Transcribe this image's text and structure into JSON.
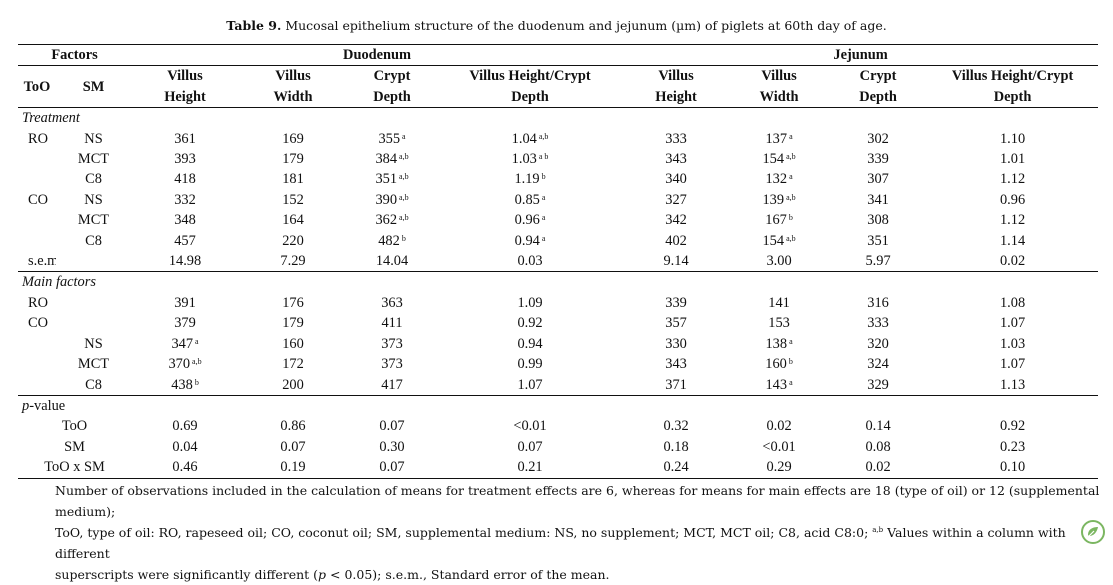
{
  "caption": {
    "label": "Table 9.",
    "text": " Mucosal epithelium structure of the duodenum and jejunum (µm) of piglets at 60th day of age."
  },
  "header": {
    "factors": "Factors",
    "duodenum": "Duodenum",
    "jejunum": "Jejunum",
    "too": "ToO",
    "sm": "SM",
    "columns": [
      [
        "Villus",
        "Height"
      ],
      [
        "Villus",
        "Width"
      ],
      [
        "Crypt",
        "Depth"
      ],
      [
        "Villus Height/Crypt",
        "Depth"
      ],
      [
        "Villus",
        "Height"
      ],
      [
        "Villus",
        "Width"
      ],
      [
        "Crypt",
        "Depth"
      ],
      [
        "Villus Height/Crypt",
        "Depth"
      ]
    ]
  },
  "sections": {
    "treatment": "Treatment",
    "main_factors": "Main factors",
    "pvalue_italic": "p",
    "pvalue_rest": "-value"
  },
  "treatment_rows": [
    {
      "too": "RO",
      "sm": "NS",
      "cells": [
        [
          "361",
          ""
        ],
        [
          "169",
          ""
        ],
        [
          "355",
          "a"
        ],
        [
          "1.04",
          "a,b"
        ],
        [
          "333",
          ""
        ],
        [
          "137",
          "a"
        ],
        [
          "302",
          ""
        ],
        [
          "1.10",
          ""
        ]
      ]
    },
    {
      "too": "",
      "sm": "MCT",
      "cells": [
        [
          "393",
          ""
        ],
        [
          "179",
          ""
        ],
        [
          "384",
          "a,b"
        ],
        [
          "1.03",
          "a b"
        ],
        [
          "343",
          ""
        ],
        [
          "154",
          "a,b"
        ],
        [
          "339",
          ""
        ],
        [
          "1.01",
          ""
        ]
      ]
    },
    {
      "too": "",
      "sm": "C8",
      "cells": [
        [
          "418",
          ""
        ],
        [
          "181",
          ""
        ],
        [
          "351",
          "a,b"
        ],
        [
          "1.19",
          "b"
        ],
        [
          "340",
          ""
        ],
        [
          "132",
          "a"
        ],
        [
          "307",
          ""
        ],
        [
          "1.12",
          ""
        ]
      ]
    },
    {
      "too": "CO",
      "sm": "NS",
      "cells": [
        [
          "332",
          ""
        ],
        [
          "152",
          ""
        ],
        [
          "390",
          "a,b"
        ],
        [
          "0.85",
          "a"
        ],
        [
          "327",
          ""
        ],
        [
          "139",
          "a,b"
        ],
        [
          "341",
          ""
        ],
        [
          "0.96",
          ""
        ]
      ]
    },
    {
      "too": "",
      "sm": "MCT",
      "cells": [
        [
          "348",
          ""
        ],
        [
          "164",
          ""
        ],
        [
          "362",
          "a,b"
        ],
        [
          "0.96",
          "a"
        ],
        [
          "342",
          ""
        ],
        [
          "167",
          "b"
        ],
        [
          "308",
          ""
        ],
        [
          "1.12",
          ""
        ]
      ]
    },
    {
      "too": "",
      "sm": "C8",
      "cells": [
        [
          "457",
          ""
        ],
        [
          "220",
          ""
        ],
        [
          "482",
          "b"
        ],
        [
          "0.94",
          "a"
        ],
        [
          "402",
          ""
        ],
        [
          "154",
          "a,b"
        ],
        [
          "351",
          ""
        ],
        [
          "1.14",
          ""
        ]
      ]
    },
    {
      "too": "s.e.m",
      "sm": "",
      "cells": [
        [
          "14.98",
          ""
        ],
        [
          "7.29",
          ""
        ],
        [
          "14.04",
          ""
        ],
        [
          "0.03",
          ""
        ],
        [
          "9.14",
          ""
        ],
        [
          "3.00",
          ""
        ],
        [
          "5.97",
          ""
        ],
        [
          "0.02",
          ""
        ]
      ]
    }
  ],
  "main_rows": [
    {
      "too": "RO",
      "sm": "",
      "cells": [
        [
          "391",
          ""
        ],
        [
          "176",
          ""
        ],
        [
          "363",
          ""
        ],
        [
          "1.09",
          ""
        ],
        [
          "339",
          ""
        ],
        [
          "141",
          ""
        ],
        [
          "316",
          ""
        ],
        [
          "1.08",
          ""
        ]
      ]
    },
    {
      "too": "CO",
      "sm": "",
      "cells": [
        [
          "379",
          ""
        ],
        [
          "179",
          ""
        ],
        [
          "411",
          ""
        ],
        [
          "0.92",
          ""
        ],
        [
          "357",
          ""
        ],
        [
          "153",
          ""
        ],
        [
          "333",
          ""
        ],
        [
          "1.07",
          ""
        ]
      ]
    },
    {
      "too": "",
      "sm": "NS",
      "cells": [
        [
          "347",
          "a"
        ],
        [
          "160",
          ""
        ],
        [
          "373",
          ""
        ],
        [
          "0.94",
          ""
        ],
        [
          "330",
          ""
        ],
        [
          "138",
          "a"
        ],
        [
          "320",
          ""
        ],
        [
          "1.03",
          ""
        ]
      ]
    },
    {
      "too": "",
      "sm": "MCT",
      "cells": [
        [
          "370",
          "a,b"
        ],
        [
          "172",
          ""
        ],
        [
          "373",
          ""
        ],
        [
          "0.99",
          ""
        ],
        [
          "343",
          ""
        ],
        [
          "160",
          "b"
        ],
        [
          "324",
          ""
        ],
        [
          "1.07",
          ""
        ]
      ]
    },
    {
      "too": "",
      "sm": "C8",
      "cells": [
        [
          "438",
          "b"
        ],
        [
          "200",
          ""
        ],
        [
          "417",
          ""
        ],
        [
          "1.07",
          ""
        ],
        [
          "371",
          ""
        ],
        [
          "143",
          "a"
        ],
        [
          "329",
          ""
        ],
        [
          "1.13",
          ""
        ]
      ]
    }
  ],
  "pvalue_rows": [
    {
      "label": "ToO",
      "cells": [
        "0.69",
        "0.86",
        "0.07",
        "<0.01",
        "0.32",
        "0.02",
        "0.14",
        "0.92"
      ]
    },
    {
      "label": "SM",
      "cells": [
        "0.04",
        "0.07",
        "0.30",
        "0.07",
        "0.18",
        "<0.01",
        "0.08",
        "0.23"
      ]
    },
    {
      "label": "ToO x SM",
      "cells": [
        "0.46",
        "0.19",
        "0.07",
        "0.21",
        "0.24",
        "0.29",
        "0.02",
        "0.10"
      ]
    }
  ],
  "notes": {
    "line1": "Number of observations included in the calculation of means for treatment effects are 6, whereas for means for main effects are 18 (type of oil) or 12 (supplemental medium);",
    "line2a": "ToO, type of oil: RO, rapeseed oil; CO, coconut oil; SM, supplemental medium: NS, no supplement; MCT, MCT oil; C8, acid C8:0; ",
    "line2sup": "a,b",
    "line2b": " Values within a column with different",
    "line3a": "superscripts were significantly different (",
    "line3p": "p",
    "line3b": " < 0.05); s.e.m., Standard error of the mean."
  },
  "logo": {
    "icon": "publisher-logo-icon",
    "color": "#7bb661"
  }
}
